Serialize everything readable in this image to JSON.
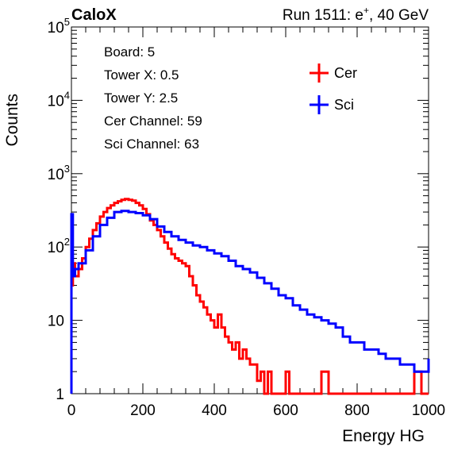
{
  "header": {
    "left": "CaloX",
    "right_prefix": "Run 1511: e",
    "right_sup": "+",
    "right_suffix": ", 40 GeV"
  },
  "info": [
    "Board: 5",
    "Tower X: 0.5",
    "Tower Y: 2.5",
    "Cer Channel: 59",
    "Sci Channel: 63"
  ],
  "chart_data": {
    "type": "line",
    "title": "",
    "xlabel": "Energy HG",
    "ylabel": "Counts",
    "xlim": [
      0,
      1000
    ],
    "ylim": [
      1,
      100000
    ],
    "yscale": "log",
    "grid": false,
    "legend_position": "top-right",
    "x_ticks": [
      {
        "value": 0,
        "label": "0"
      },
      {
        "value": 200,
        "label": "200"
      },
      {
        "value": 400,
        "label": "400"
      },
      {
        "value": 600,
        "label": "600"
      },
      {
        "value": 800,
        "label": "800"
      },
      {
        "value": 1000,
        "label": "1000"
      }
    ],
    "y_ticks": [
      {
        "value": 1,
        "base": "1",
        "exp": ""
      },
      {
        "value": 10,
        "base": "10",
        "exp": ""
      },
      {
        "value": 100,
        "base": "10",
        "exp": "2"
      },
      {
        "value": 1000,
        "base": "10",
        "exp": "3"
      },
      {
        "value": 10000,
        "base": "10",
        "exp": "4"
      },
      {
        "value": 100000,
        "base": "10",
        "exp": "5"
      }
    ],
    "series": [
      {
        "name": "Cer",
        "color": "#ff0000",
        "x": [
          0,
          4,
          10,
          20,
          30,
          40,
          50,
          60,
          70,
          80,
          90,
          100,
          110,
          120,
          130,
          140,
          150,
          160,
          170,
          180,
          190,
          200,
          210,
          220,
          230,
          240,
          250,
          260,
          270,
          280,
          290,
          300,
          310,
          320,
          330,
          340,
          350,
          360,
          370,
          380,
          390,
          400,
          410,
          420,
          430,
          440,
          450,
          460,
          470,
          480,
          490,
          500,
          510,
          520,
          530,
          540,
          550,
          560,
          570,
          580,
          590,
          600,
          610,
          620,
          630,
          640,
          660,
          680,
          700,
          720,
          740,
          760,
          780,
          800,
          820,
          840,
          860,
          880,
          900,
          920,
          940,
          960,
          980,
          1000
        ],
        "values": [
          30,
          60,
          40,
          50,
          70,
          100,
          130,
          170,
          210,
          260,
          300,
          340,
          370,
          400,
          420,
          440,
          450,
          440,
          430,
          400,
          370,
          330,
          280,
          230,
          200,
          170,
          140,
          115,
          95,
          80,
          70,
          65,
          60,
          55,
          40,
          30,
          22,
          18,
          15,
          12,
          10,
          8,
          12,
          8,
          6,
          5,
          4,
          5,
          3,
          4,
          3,
          2.5,
          2.5,
          1.5,
          2,
          1,
          2,
          1,
          1,
          1,
          1,
          2,
          1,
          1,
          1,
          1,
          1,
          1,
          2,
          1,
          1,
          1,
          1,
          1,
          1,
          1,
          1,
          1,
          1,
          1,
          1,
          2,
          1,
          1
        ]
      },
      {
        "name": "Sci",
        "color": "#0000ff",
        "x": [
          0,
          4,
          10,
          20,
          40,
          60,
          80,
          100,
          120,
          140,
          160,
          180,
          200,
          220,
          240,
          260,
          280,
          300,
          320,
          340,
          360,
          380,
          400,
          420,
          440,
          460,
          480,
          500,
          520,
          540,
          560,
          580,
          600,
          620,
          640,
          660,
          680,
          700,
          720,
          740,
          760,
          780,
          800,
          820,
          840,
          860,
          880,
          900,
          920,
          940,
          960,
          980,
          1000
        ],
        "values": [
          280,
          40,
          50,
          60,
          90,
          140,
          200,
          250,
          300,
          310,
          300,
          290,
          270,
          240,
          190,
          160,
          140,
          125,
          115,
          105,
          100,
          90,
          82,
          75,
          65,
          55,
          50,
          45,
          38,
          32,
          27,
          22,
          20,
          16,
          14,
          12,
          11,
          10,
          9,
          8,
          6,
          5,
          5,
          4,
          4,
          3.5,
          3,
          3,
          2.5,
          2.5,
          2,
          2,
          3
        ]
      }
    ]
  }
}
